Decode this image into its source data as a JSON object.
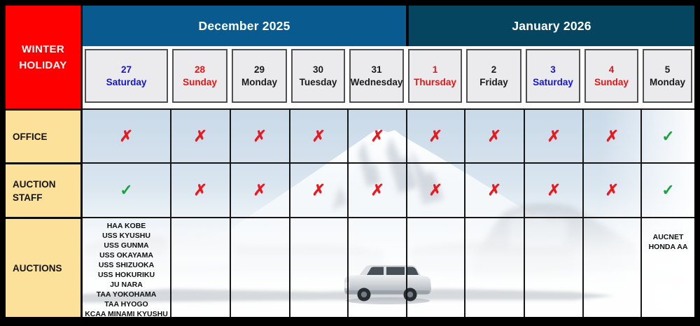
{
  "title": "WINTER HOLIDAY",
  "months": [
    {
      "label": "December 2025"
    },
    {
      "label": "January 2026"
    }
  ],
  "days": [
    {
      "num": "27",
      "name": "Saturday",
      "color": "blue"
    },
    {
      "num": "28",
      "name": "Sunday",
      "color": "red"
    },
    {
      "num": "29",
      "name": "Monday",
      "color": "black"
    },
    {
      "num": "30",
      "name": "Tuesday",
      "color": "black"
    },
    {
      "num": "31",
      "name": "Wednesday",
      "color": "black"
    },
    {
      "num": "1",
      "name": "Thursday",
      "color": "red"
    },
    {
      "num": "2",
      "name": "Friday",
      "color": "black"
    },
    {
      "num": "3",
      "name": "Saturday",
      "color": "blue"
    },
    {
      "num": "4",
      "name": "Sunday",
      "color": "red"
    },
    {
      "num": "5",
      "name": "Monday",
      "color": "black"
    }
  ],
  "row_labels": {
    "office": "OFFICE",
    "staff": "AUCTION STAFF",
    "auctions": "AUCTIONS"
  },
  "marks": {
    "office": [
      "x",
      "x",
      "x",
      "x",
      "x",
      "x",
      "x",
      "x",
      "x",
      "check"
    ],
    "staff": [
      "check",
      "x",
      "x",
      "x",
      "x",
      "x",
      "x",
      "x",
      "x",
      "check"
    ]
  },
  "symbols": {
    "x": "✗",
    "check": "✓"
  },
  "auction_cells": [
    [
      "HAA KOBE",
      "USS KYUSHU",
      "USS GUNMA",
      "USS OKAYAMA",
      "USS SHIZUOKA",
      "USS HOKURIKU",
      "JU NARA",
      "TAA YOKOHAMA",
      "TAA HYOGO",
      "KCAA MINAMI KYUSHU"
    ],
    [],
    [],
    [],
    [],
    [],
    [],
    [],
    [],
    [
      "AUCNET",
      "HONDA AA"
    ]
  ],
  "colors": {
    "title_bg": "#fe0000",
    "dec_header_bg": "#095a8e",
    "jan_header_bg": "#064560",
    "label_bg": "#fbe199",
    "date_chip_bg": "#ebebee",
    "day_blue": "#1414d6",
    "day_red": "#ee1111",
    "day_black": "#1a1a1a",
    "cross_red": "#e8191f",
    "check_green": "#1ca23e",
    "header_text": "#ffffff",
    "label_text": "#141414"
  }
}
